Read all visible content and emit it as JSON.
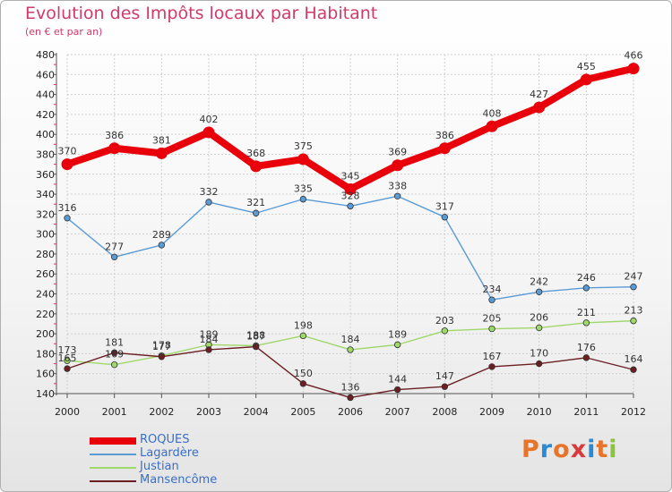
{
  "header": {
    "title": "Evolution des Impôts locaux par Habitant",
    "subtitle": "(en € et par an)"
  },
  "logo": {
    "text": "Proxiti",
    "colors": [
      "#e8742a",
      "#2a8ad6",
      "#e8742a",
      "#d93a3a",
      "#2a8ad6",
      "#e8742a",
      "#8ac43f"
    ]
  },
  "chart_data": {
    "type": "line",
    "x": [
      2000,
      2001,
      2002,
      2003,
      2004,
      2005,
      2006,
      2007,
      2008,
      2009,
      2010,
      2011,
      2012
    ],
    "ylim": [
      140,
      480
    ],
    "yticks": [
      140,
      160,
      180,
      200,
      220,
      240,
      260,
      280,
      300,
      320,
      340,
      360,
      380,
      400,
      420,
      440,
      460,
      480
    ],
    "grid": true,
    "legend_position": "bottom-left",
    "series": [
      {
        "name": "ROQUES",
        "color": "#e8000b",
        "values": [
          370,
          386,
          381,
          402,
          368,
          375,
          345,
          369,
          386,
          408,
          427,
          455,
          466
        ]
      },
      {
        "name": "Lagardère",
        "color": "#5b9bd5",
        "values": [
          316,
          277,
          289,
          332,
          321,
          335,
          328,
          338,
          317,
          234,
          242,
          246,
          247
        ]
      },
      {
        "name": "Justian",
        "color": "#9fd86b",
        "values": [
          173,
          169,
          178,
          189,
          188,
          198,
          184,
          189,
          203,
          205,
          206,
          211,
          213
        ]
      },
      {
        "name": "Mansencôme",
        "color": "#6b1f22",
        "values": [
          165,
          181,
          177,
          184,
          187,
          150,
          136,
          144,
          147,
          167,
          170,
          176,
          164
        ]
      }
    ]
  }
}
